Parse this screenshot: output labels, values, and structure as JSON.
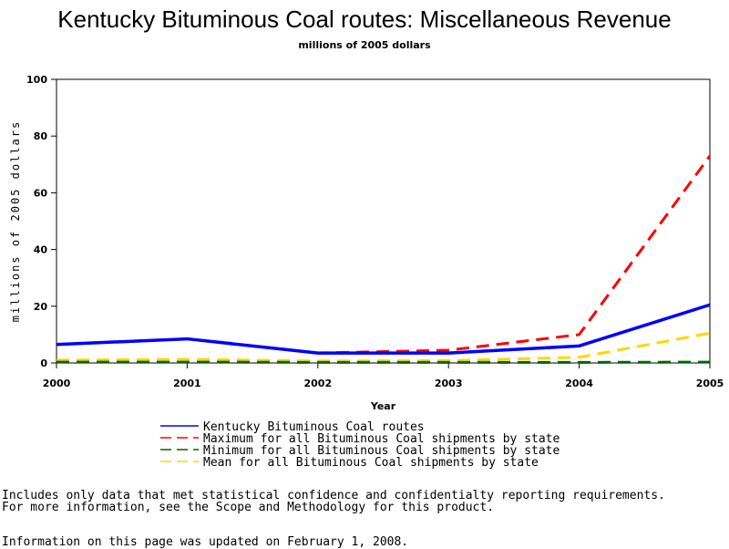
{
  "chart_data": {
    "type": "line",
    "title": "Kentucky Bituminous Coal routes: Miscellaneous Revenue",
    "subtitle": "millions of 2005 dollars",
    "xlabel": "Year",
    "ylabel": "millions of 2005 dollars",
    "x": [
      "2000",
      "2001",
      "2002",
      "2003",
      "2004",
      "2005"
    ],
    "yticks": [
      "0",
      "20",
      "40",
      "60",
      "80",
      "100"
    ],
    "xlim": [
      2000,
      2005
    ],
    "ylim": [
      0,
      100
    ],
    "grid": false,
    "legend_position": "bottom",
    "series": [
      {
        "name": "Kentucky Bituminous Coal routes",
        "values": [
          6.5,
          8.5,
          3.5,
          3.5,
          6,
          20.5
        ],
        "color": "#0000ff",
        "style": "solid"
      },
      {
        "name": "Maximum for all Bituminous Coal shipments by state",
        "values": [
          6.5,
          8.5,
          3.5,
          4.5,
          10,
          73
        ],
        "color": "#ff0000",
        "style": "dashed"
      },
      {
        "name": "Minimum for all Bituminous Coal shipments by state",
        "values": [
          0.3,
          0.3,
          0.2,
          0.2,
          0.2,
          0.3
        ],
        "color": "#006400",
        "style": "dashed"
      },
      {
        "name": "Mean for all Bituminous Coal shipments by state",
        "values": [
          1,
          1.3,
          0.7,
          0.8,
          2,
          10.5
        ],
        "color": "#ffd700",
        "style": "dashed"
      }
    ]
  },
  "footnotes": [
    "Includes only data that met statistical confidence and confidentialty reporting requirements.",
    "For more information, see the Scope and Methodology for this product.",
    "Information on this page was updated on February 1, 2008."
  ]
}
